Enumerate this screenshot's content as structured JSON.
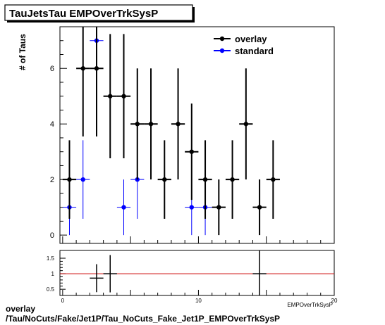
{
  "chart_data": {
    "type": "scatter",
    "title": "TauJetsTau EMPOverTrkSysP",
    "ylabel": "# of Taus",
    "xlabel": "EMPOverTrkSysP",
    "xlim": [
      -0.2,
      20
    ],
    "ylim": [
      -0.3,
      7.5
    ],
    "y_ticks": [
      0,
      2,
      4,
      6
    ],
    "legend_position": "top-right",
    "bin_width": 1,
    "series": [
      {
        "name": "overlay",
        "color": "#000000",
        "x": [
          0.5,
          1.5,
          2.5,
          3.5,
          4.5,
          5.5,
          6.5,
          7.5,
          8.5,
          9.5,
          10.5,
          11.5,
          12.5,
          13.5,
          14.5,
          15.5
        ],
        "y": [
          2,
          6,
          6,
          5,
          5,
          4,
          4,
          2,
          4,
          3,
          2,
          1,
          2,
          4,
          1,
          2
        ]
      },
      {
        "name": "standard",
        "color": "#0000ff",
        "x": [
          0.5,
          1.5,
          2.5,
          4.5,
          5.5,
          9.5,
          10.5
        ],
        "y": [
          1,
          2,
          7,
          1,
          2,
          1,
          1
        ]
      }
    ],
    "ratio_panel": {
      "ylim": [
        0.3,
        1.75
      ],
      "y_ticks": [
        0.5,
        1,
        1.5
      ],
      "x_tick_labels": [
        "0",
        "10",
        "20"
      ],
      "reference_line": 1,
      "points": [
        {
          "x": 2.5,
          "y": 0.857,
          "err": 0.45
        },
        {
          "x": 3.5,
          "y": 1.0,
          "err": 0.6
        },
        {
          "x": 14.5,
          "y": 1.0,
          "err": 1.4
        }
      ]
    }
  },
  "footer": {
    "line1": "overlay",
    "line2": "/Tau/NoCuts/Fake/Jet1P/Tau_NoCuts_Fake_Jet1P_EMPOverTrkSysP"
  }
}
